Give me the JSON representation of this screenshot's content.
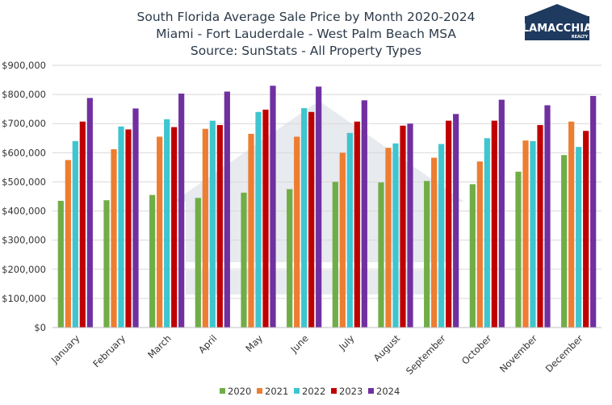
{
  "chart_data": {
    "type": "bar",
    "title_lines": [
      "South Florida Average Sale Price by Month 2020-2024",
      "Miami - Fort Lauderdale - West Palm Beach MSA",
      "Source: SunStats - All Property Types"
    ],
    "xlabel": "",
    "ylabel": "",
    "ylim": [
      0,
      900000
    ],
    "yticks": [
      "$0",
      "$100,000",
      "$200,000",
      "$300,000",
      "$400,000",
      "$500,000",
      "$600,000",
      "$700,000",
      "$800,000",
      "$900,000"
    ],
    "grid": "horizontal",
    "legend_position": "bottom",
    "categories": [
      "January",
      "February",
      "March",
      "April",
      "May",
      "June",
      "July",
      "August",
      "September",
      "October",
      "November",
      "December"
    ],
    "series": [
      {
        "name": "2020",
        "color": "#70ad47",
        "values": [
          435000,
          437000,
          455000,
          445000,
          463000,
          475000,
          500000,
          498000,
          503000,
          492000,
          535000,
          592000
        ]
      },
      {
        "name": "2021",
        "color": "#ed7d31",
        "values": [
          575000,
          612000,
          655000,
          682000,
          665000,
          655000,
          600000,
          617000,
          583000,
          570000,
          642000,
          707000
        ]
      },
      {
        "name": "2022",
        "color": "#3fc5cf",
        "values": [
          640000,
          690000,
          715000,
          710000,
          740000,
          753000,
          668000,
          632000,
          630000,
          650000,
          640000,
          620000
        ]
      },
      {
        "name": "2023",
        "color": "#c00000",
        "values": [
          707000,
          680000,
          688000,
          695000,
          748000,
          740000,
          707000,
          693000,
          710000,
          710000,
          695000,
          675000
        ]
      },
      {
        "name": "2024",
        "color": "#7030a0",
        "values": [
          788000,
          752000,
          803000,
          810000,
          830000,
          827000,
          780000,
          700000,
          733000,
          782000,
          763000,
          795000
        ]
      }
    ]
  },
  "logo": {
    "name": "LAMACCHIA",
    "tagline": "REALTY",
    "color": "#1f3a5f"
  }
}
